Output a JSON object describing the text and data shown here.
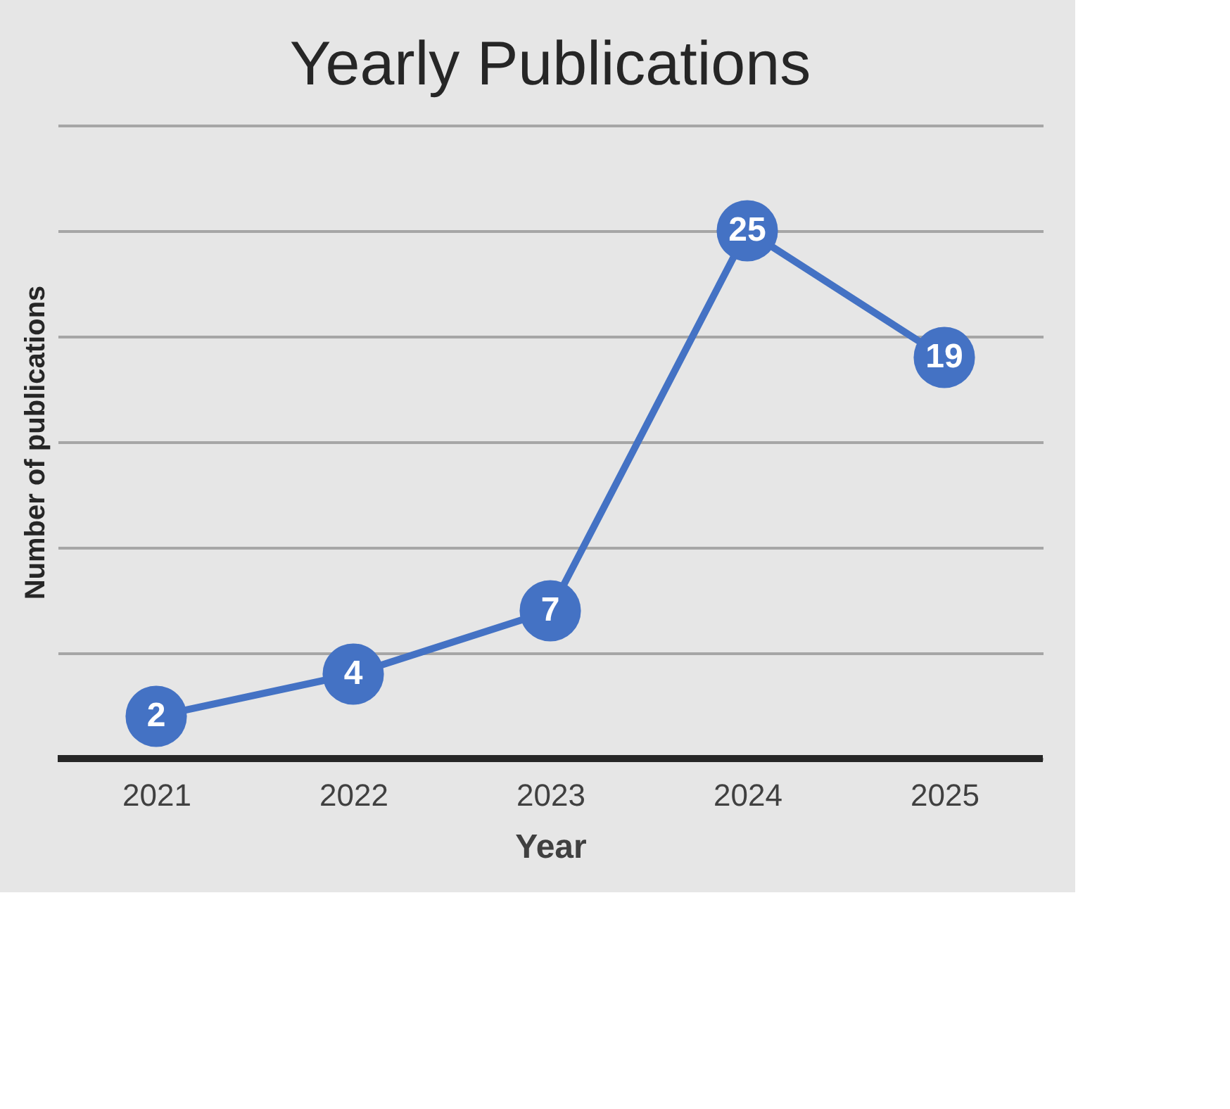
{
  "chart_data": {
    "type": "line",
    "title": "Yearly Publications",
    "xlabel": "Year",
    "ylabel": "Number of publications",
    "categories": [
      "2021",
      "2022",
      "2023",
      "2024",
      "2025"
    ],
    "series": [
      {
        "color": "#4472c4",
        "values": [
          2,
          4,
          7,
          25,
          19
        ]
      }
    ],
    "ylim": [
      0,
      30
    ],
    "yticks": [
      0,
      5,
      10,
      15,
      20,
      25,
      30
    ],
    "grid": "y",
    "tick_labels": "x",
    "marker": "circle",
    "line_style": "solid",
    "data_labels": true
  }
}
